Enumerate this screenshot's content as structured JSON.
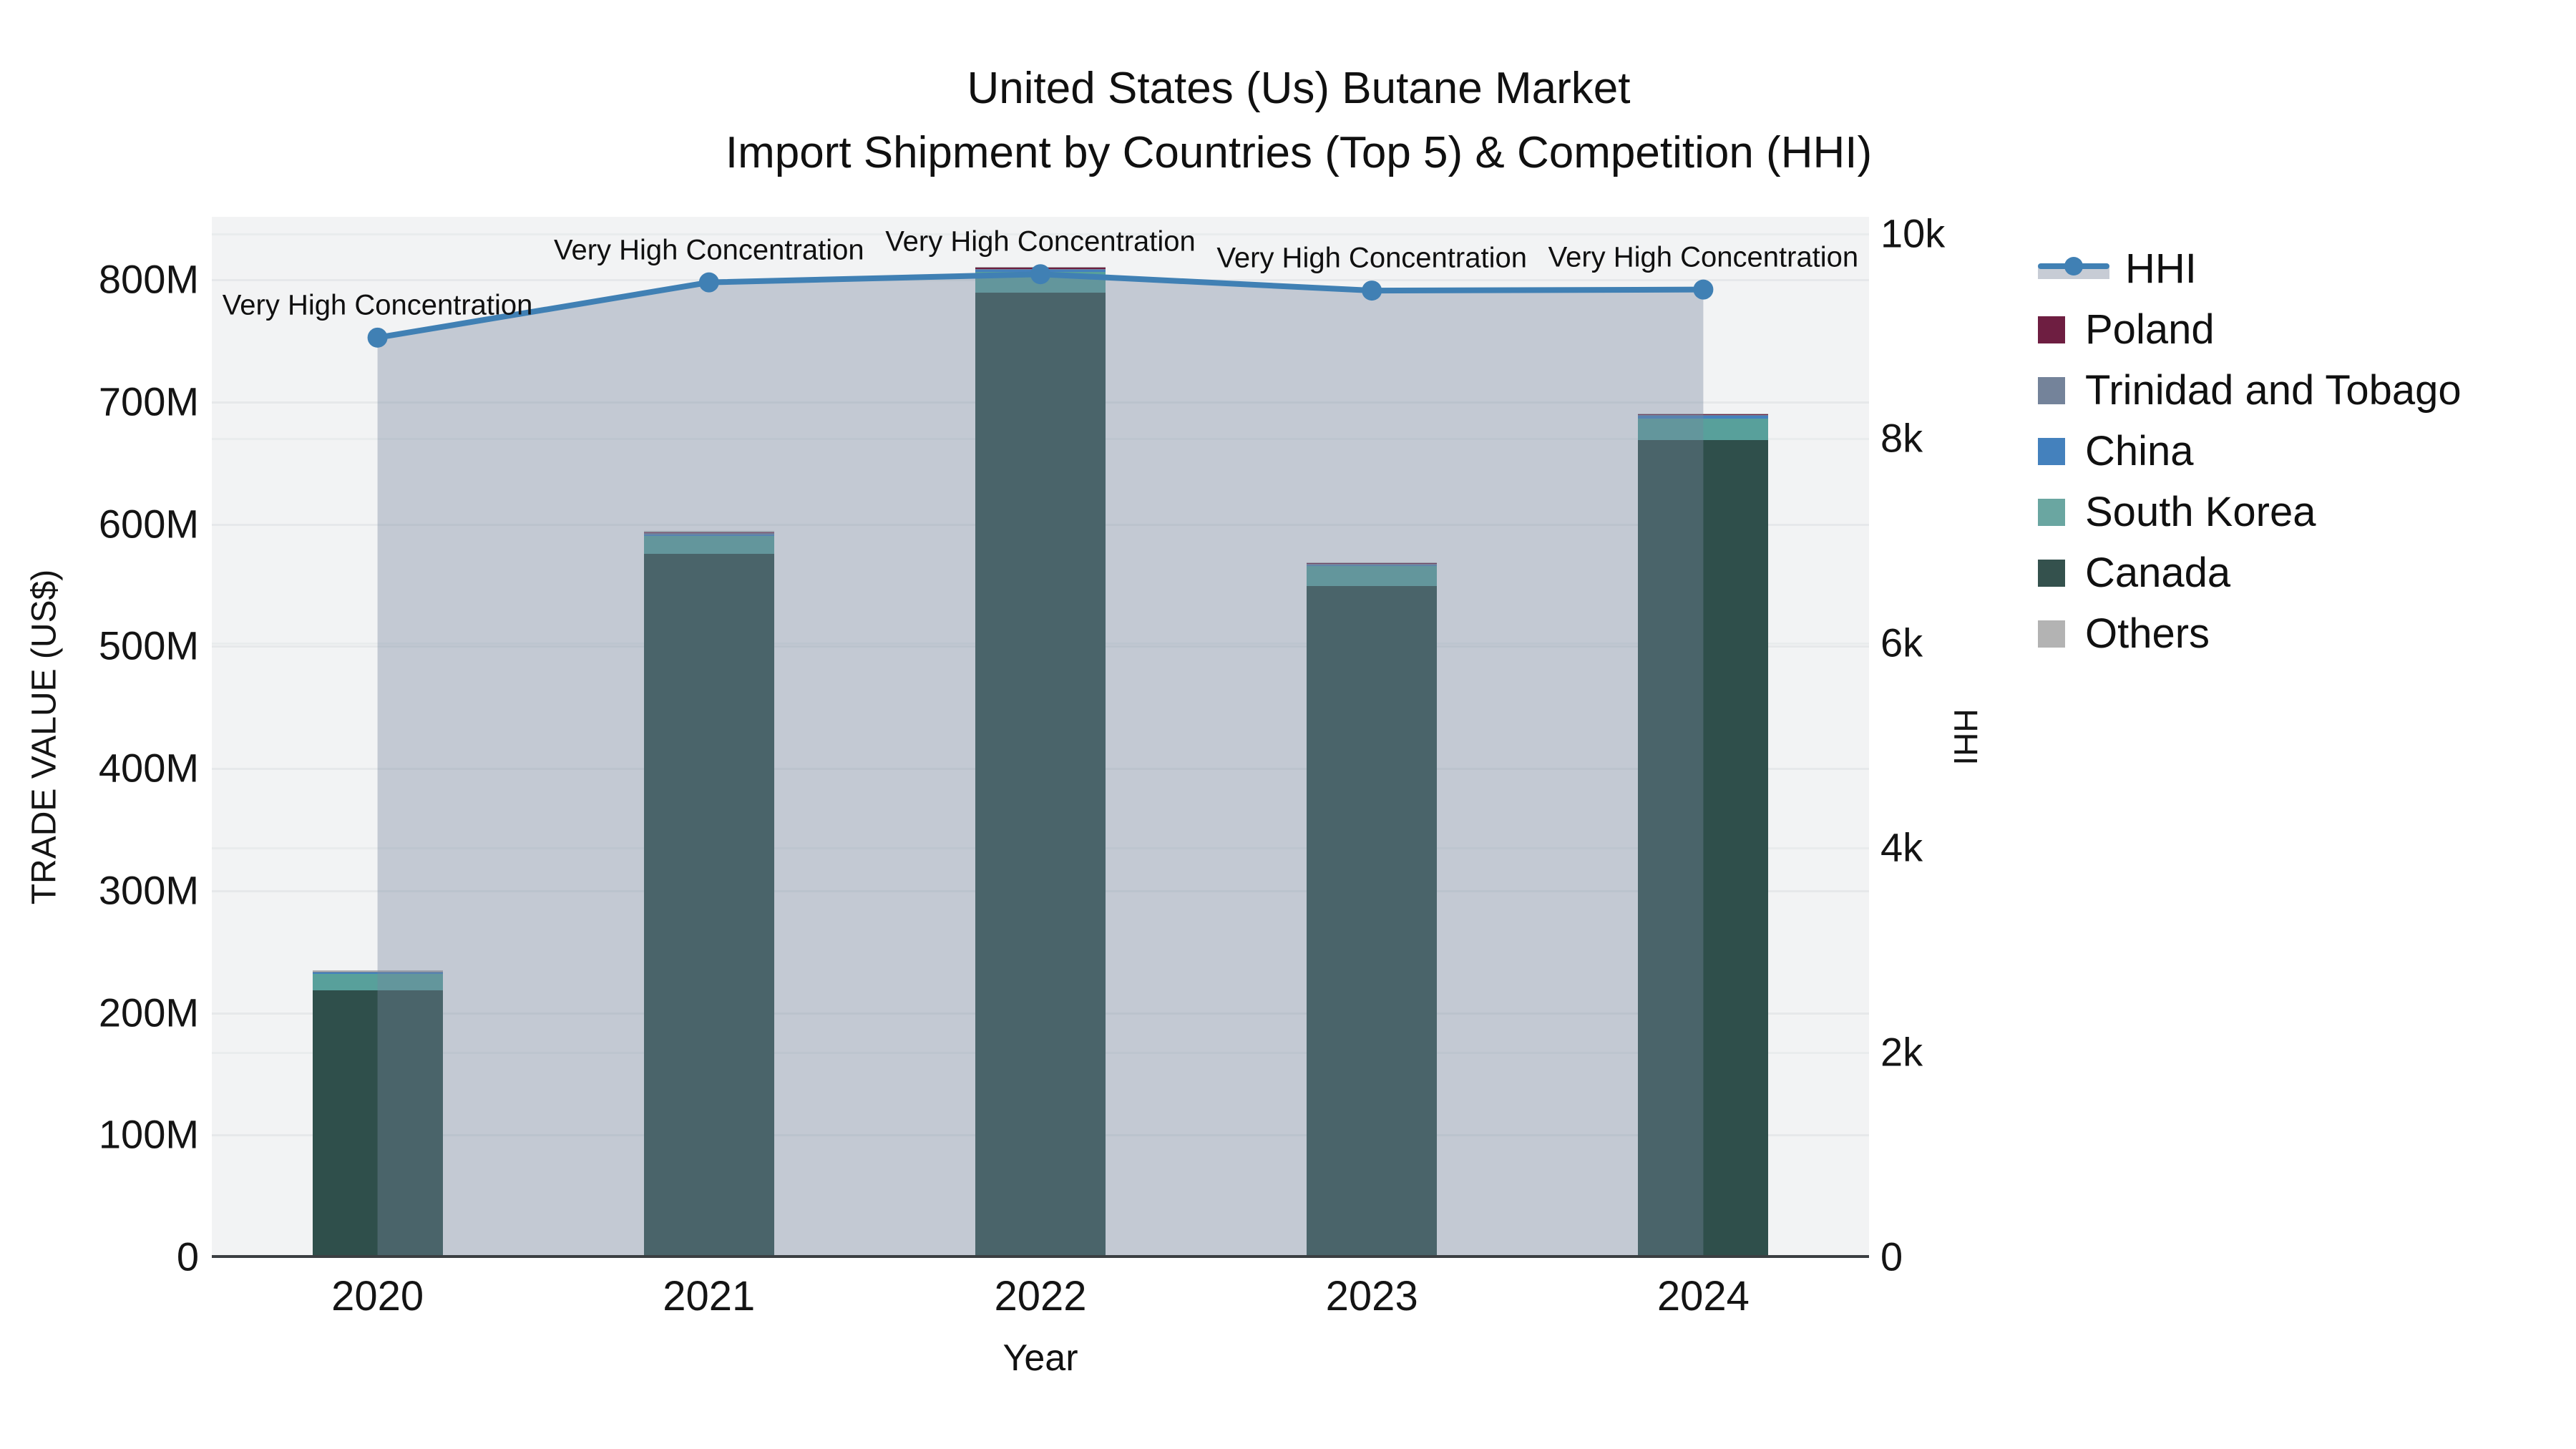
{
  "title_line1": "United States (Us) Butane Market",
  "title_line2": "Import Shipment by Countries (Top 5) & Competition (HHI)",
  "chart_data": {
    "type": "bar+line",
    "categories": [
      "2020",
      "2021",
      "2022",
      "2023",
      "2024"
    ],
    "xlabel": "Year",
    "left_axis": {
      "label": "TRADE VALUE (US$)",
      "ticks": [
        "0",
        "100M",
        "200M",
        "300M",
        "400M",
        "500M",
        "600M",
        "700M",
        "800M"
      ],
      "max_millions_usd": 800,
      "grid": true
    },
    "right_axis": {
      "label": "HHI",
      "ticks": [
        "0",
        "2k",
        "4k",
        "6k",
        "8k",
        "10k"
      ],
      "max": 10000,
      "grid": true
    },
    "bar_series_stack_bottom_to_top": [
      {
        "name": "Canada",
        "color": "#2f4f4b",
        "values_millions_usd": [
          218,
          575,
          789,
          549,
          668
        ]
      },
      {
        "name": "South Korea",
        "color": "#58a09b",
        "values_millions_usd": [
          13.5,
          15,
          17,
          16,
          18
        ]
      },
      {
        "name": "China",
        "color": "#4481bd",
        "values_millions_usd": [
          1.5,
          1.2,
          1.5,
          0.8,
          2.5
        ]
      },
      {
        "name": "Trinidad and Tobago",
        "color": "#74839a",
        "values_millions_usd": [
          0.5,
          0.8,
          0.8,
          1.6,
          0.8
        ]
      },
      {
        "name": "Poland",
        "color": "#6e1e41",
        "values_millions_usd": [
          0.3,
          1.3,
          1.6,
          0.4,
          0.4
        ]
      },
      {
        "name": "Others",
        "color": "#b3b3b3",
        "values_millions_usd": [
          0.2,
          0.3,
          0.3,
          0.3,
          0.3
        ]
      }
    ],
    "line_series": {
      "name": "HHI",
      "color": "#4080b4",
      "area_fill_color": "rgba(118,134,158,0.38)",
      "values": [
        8980,
        9520,
        9600,
        9440,
        9450
      ]
    },
    "annotations": [
      {
        "x": "2020",
        "text": "Very High Concentration"
      },
      {
        "x": "2021",
        "text": "Very High Concentration"
      },
      {
        "x": "2022",
        "text": "Very High Concentration"
      },
      {
        "x": "2023",
        "text": "Very High Concentration"
      },
      {
        "x": "2024",
        "text": "Very High Concentration"
      }
    ]
  },
  "legend": {
    "items": [
      {
        "label": "HHI",
        "swatch": "line-marker-fill",
        "color": "#4080b4"
      },
      {
        "label": "Poland",
        "swatch": "square",
        "color": "#6e1e41"
      },
      {
        "label": "Trinidad and Tobago",
        "swatch": "square",
        "color": "#74839a"
      },
      {
        "label": "China",
        "swatch": "square",
        "color": "#4481bd"
      },
      {
        "label": "South Korea",
        "swatch": "square",
        "color": "#6aa6a1"
      },
      {
        "label": "Canada",
        "swatch": "square",
        "color": "#34514d"
      },
      {
        "label": "Others",
        "swatch": "square",
        "color": "#b3b3b3"
      }
    ]
  }
}
